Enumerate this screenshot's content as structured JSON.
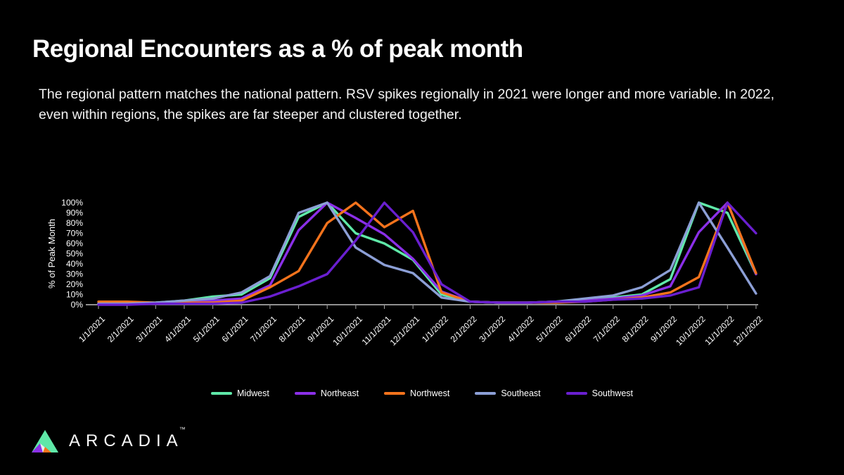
{
  "slide": {
    "title": "Regional Encounters as a % of peak month",
    "subtitle": "The regional pattern matches the national pattern. RSV spikes regionally in 2021 were longer and more variable. In 2022, even within regions, the spikes are far steeper and clustered together."
  },
  "chart_data": {
    "type": "line",
    "x": [
      "1/1/2021",
      "2/1/2021",
      "3/1/2021",
      "4/1/2021",
      "5/1/2021",
      "6/1/2021",
      "7/1/2021",
      "8/1/2021",
      "9/1/2021",
      "10/1/2021",
      "11/1/2021",
      "12/1/2021",
      "1/1/2022",
      "2/1/2022",
      "3/1/2022",
      "4/1/2022",
      "5/1/2022",
      "6/1/2022",
      "7/1/2022",
      "8/1/2022",
      "9/1/2022",
      "10/1/2022",
      "11/1/2022",
      "12/1/2022"
    ],
    "series": [
      {
        "name": "Midwest",
        "color": "#5FE8A8",
        "values": [
          1,
          1,
          2,
          4,
          8,
          10,
          26,
          86,
          100,
          70,
          60,
          44,
          10,
          3,
          2,
          2,
          3,
          4,
          7,
          10,
          25,
          100,
          90,
          30
        ]
      },
      {
        "name": "Northeast",
        "color": "#8B2FE8",
        "values": [
          1,
          1,
          1,
          2,
          4,
          6,
          19,
          73,
          100,
          85,
          69,
          45,
          13,
          3,
          2,
          2,
          3,
          4,
          6,
          9,
          18,
          71,
          100,
          30
        ]
      },
      {
        "name": "Northwest",
        "color": "#F4731C",
        "values": [
          3,
          3,
          2,
          2,
          2,
          4,
          17,
          33,
          80,
          100,
          76,
          92,
          12,
          3,
          2,
          2,
          2,
          3,
          5,
          7,
          12,
          27,
          100,
          31
        ]
      },
      {
        "name": "Southeast",
        "color": "#8C9FD6",
        "values": [
          1,
          1,
          2,
          4,
          6,
          12,
          28,
          90,
          100,
          56,
          39,
          31,
          7,
          3,
          2,
          2,
          3,
          6,
          9,
          17,
          34,
          100,
          56,
          11
        ]
      },
      {
        "name": "Southwest",
        "color": "#6A1FD0",
        "values": [
          0,
          0,
          1,
          1,
          1,
          2,
          8,
          18,
          30,
          63,
          100,
          71,
          20,
          3,
          2,
          2,
          3,
          3,
          5,
          6,
          9,
          17,
          100,
          70
        ]
      }
    ],
    "ylabel": "% of Peak Month",
    "yticks": [
      "0%",
      "10%",
      "20%",
      "30%",
      "40%",
      "50%",
      "60%",
      "70%",
      "80%",
      "90%",
      "100%"
    ],
    "ylim": [
      0,
      100
    ],
    "grid": false,
    "legend_position": "bottom"
  },
  "logo": {
    "wordmark": "ARCADIA",
    "trademark": "™"
  },
  "colors": {
    "background": "#000000",
    "text": "#FFFFFF",
    "axis_line": "#E6E6E6",
    "tick": "#AAAAAA"
  }
}
